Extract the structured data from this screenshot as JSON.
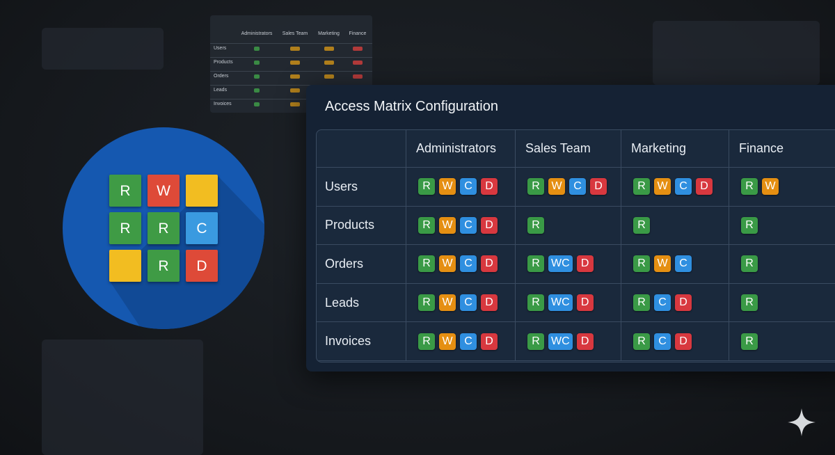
{
  "icon": {
    "tiles": [
      {
        "text": "R",
        "color": "#3f9b45"
      },
      {
        "text": "W",
        "color": "#de4a38"
      },
      {
        "text": "",
        "color": "#f2bd21"
      },
      {
        "text": "R",
        "color": "#3f9b45"
      },
      {
        "text": "R",
        "color": "#3f9b45"
      },
      {
        "text": "C",
        "color": "#3a9ae0"
      },
      {
        "text": "",
        "color": "#f2bd21"
      },
      {
        "text": "R",
        "color": "#3f9b45"
      },
      {
        "text": "D",
        "color": "#de4a38"
      }
    ]
  },
  "background_table": {
    "columns": [
      "Administrators",
      "Sales Team",
      "Marketing",
      "Finance"
    ],
    "rows": [
      "Users",
      "Products",
      "Orders",
      "Leads",
      "Invoices"
    ]
  },
  "panel": {
    "title": "Access Matrix Configuration",
    "badge_colors": {
      "R": "#3a9a46",
      "W": "#e58f12",
      "C": "#2f8fe0",
      "D": "#d8383f",
      "WC": "#2f8fe0"
    },
    "table": {
      "columns": [
        "Administrators",
        "Sales Team",
        "Marketing",
        "Finance"
      ],
      "rows": [
        {
          "label": "Users",
          "cells": [
            [
              "R",
              "W",
              "C",
              "D"
            ],
            [
              "R",
              "W",
              "C",
              "D"
            ],
            [
              "R",
              "W",
              "C",
              "D"
            ],
            [
              "R",
              "W"
            ]
          ]
        },
        {
          "label": "Products",
          "cells": [
            [
              "R",
              "W",
              "C",
              "D"
            ],
            [
              "R"
            ],
            [
              "R"
            ],
            [
              "R"
            ]
          ]
        },
        {
          "label": "Orders",
          "cells": [
            [
              "R",
              "W",
              "C",
              "D"
            ],
            [
              "R",
              "WC",
              "D"
            ],
            [
              "R",
              "W",
              "C"
            ],
            [
              "R"
            ]
          ]
        },
        {
          "label": "Leads",
          "cells": [
            [
              "R",
              "W",
              "C",
              "D"
            ],
            [
              "R",
              "WC",
              "D"
            ],
            [
              "R",
              "C",
              "D"
            ],
            [
              "R"
            ]
          ]
        },
        {
          "label": "Invoices",
          "cells": [
            [
              "R",
              "W",
              "C",
              "D"
            ],
            [
              "R",
              "WC",
              "D"
            ],
            [
              "R",
              "C",
              "D"
            ],
            [
              "R"
            ]
          ]
        }
      ]
    }
  }
}
